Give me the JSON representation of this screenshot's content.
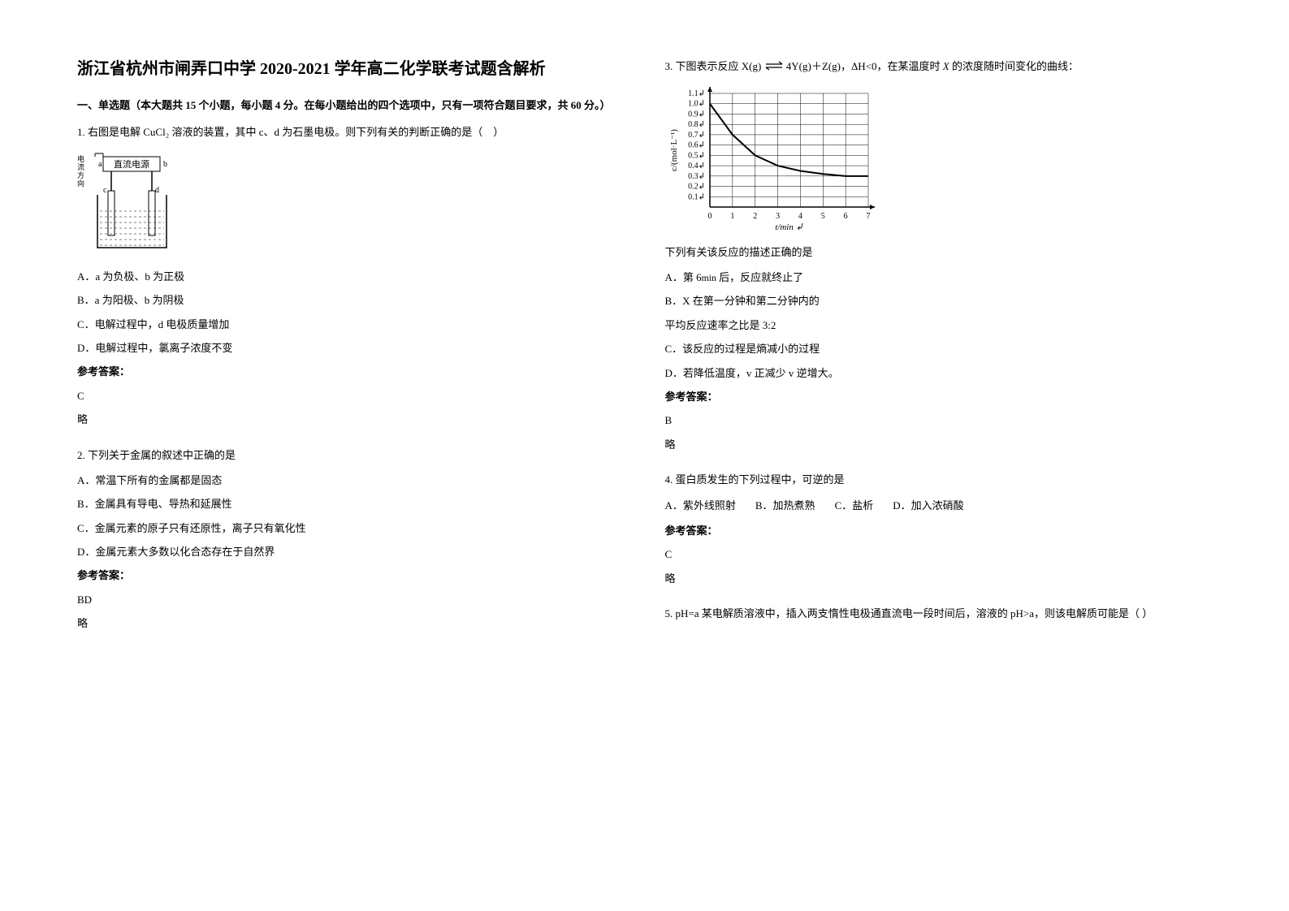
{
  "title": "浙江省杭州市闸弄口中学 2020-2021 学年高二化学联考试题含解析",
  "section1_heading": "一、单选题（本大题共 15 个小题，每小题 4 分。在每小题给出的四个选项中，只有一项符合题目要求，共 60 分。）",
  "q1": {
    "stem": "1. 右图是电解 CuCl₂ 溶液的装置，其中 c、d 为石墨电极。则下列有关的判断正确的是（　）",
    "diagram": {
      "box_label_left": "电流方向",
      "top_label": "直流电源",
      "a": "a",
      "b": "b",
      "c": "c",
      "d": "d",
      "line_color": "#000000",
      "bg_color": "#ffffff"
    },
    "optA": "A．a 为负极、b 为正极",
    "optB": "B．a 为阳极、b 为阴极",
    "optC": "C．电解过程中，d 电极质量增加",
    "optD": "D．电解过程中，氯离子浓度不变",
    "answer_label": "参考答案：",
    "answer": "C",
    "explanation": "略"
  },
  "q2": {
    "stem": "2. 下列关于金属的叙述中正确的是",
    "optA": "A．常温下所有的金属都是固态",
    "optB": "B．金属具有导电、导热和延展性",
    "optC": "C．金属元素的原子只有还原性，离子只有氧化性",
    "optD": "D．金属元素大多数以化合态存在于自然界",
    "answer_label": "参考答案：",
    "answer": "BD",
    "explanation": "略"
  },
  "q3": {
    "stem_prefix": "3. 下图表示反应 X(g) ",
    "stem_mid": " 4Y(g)＋Z(g)，ΔH<0，在某温度时 ",
    "stem_X": "X",
    "stem_suffix": " 的浓度随时间变化的曲线：",
    "chart": {
      "type": "line",
      "xlabel": "t/min",
      "ylabel": "c/(mol·L⁻¹)",
      "x_ticks": [
        0,
        1,
        2,
        3,
        4,
        5,
        6,
        7
      ],
      "y_ticks": [
        0.1,
        0.2,
        0.3,
        0.4,
        0.5,
        0.6,
        0.7,
        0.8,
        0.9,
        1.0,
        1.1
      ],
      "y_min": 0,
      "y_max": 1.1,
      "x_min": 0,
      "x_max": 7,
      "data_points": [
        {
          "x": 0,
          "y": 1.0
        },
        {
          "x": 1,
          "y": 0.7
        },
        {
          "x": 2,
          "y": 0.5
        },
        {
          "x": 3,
          "y": 0.4
        },
        {
          "x": 4,
          "y": 0.35
        },
        {
          "x": 5,
          "y": 0.32
        },
        {
          "x": 6,
          "y": 0.3
        },
        {
          "x": 7,
          "y": 0.3
        }
      ],
      "line_color": "#000000",
      "grid_color": "#000000",
      "axis_color": "#000000",
      "bg_color": "#ffffff",
      "font_size": 10
    },
    "sub_stem": "下列有关该反应的描述正确的是",
    "optA": "A．第 6min 后，反应就终止了",
    "optB": "B．X 在第一分钟和第二分钟内的",
    "optB_cont": "平均反应速率之比是 3:2",
    "optC": "C．该反应的过程是熵减小的过程",
    "optD": "D．若降低温度，v 正减少 v 逆增大。",
    "answer_label": "参考答案：",
    "answer": "B",
    "explanation": "略"
  },
  "q4": {
    "stem": "4. 蛋白质发生的下列过程中，可逆的是",
    "optA": "A．紫外线照射",
    "optB": "B．加热煮熟",
    "optC": "C．盐析",
    "optD": "D．加入浓硝酸",
    "answer_label": "参考答案：",
    "answer": "C",
    "explanation": "略"
  },
  "q5": {
    "stem": "5. pH=a 某电解质溶液中，插入两支惰性电极通直流电一段时间后，溶液的 pH>a，则该电解质可能是（ ）"
  }
}
